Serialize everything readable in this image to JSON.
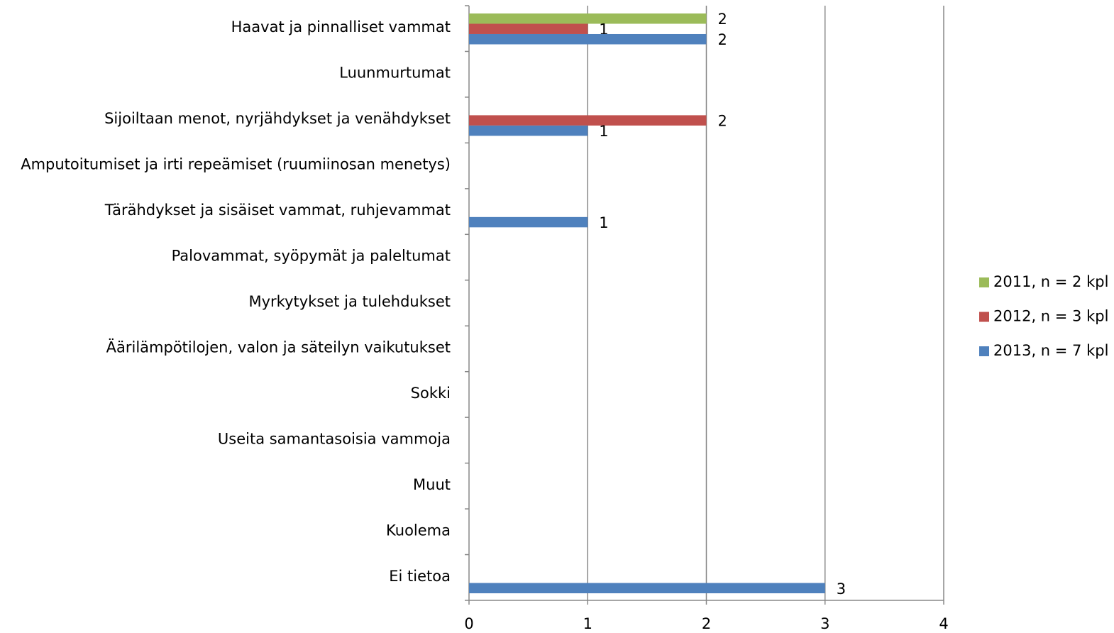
{
  "chart_data": {
    "type": "hbar",
    "categories": [
      "Haavat ja pinnalliset vammat",
      "Luunmurtumat",
      "Sijoiltaan menot, nyrjähdykset ja venähdykset",
      "Amputoitumiset ja irti repeämiset (ruumiinosan menetys)",
      "Tärähdykset ja sisäiset vammat, ruhjevammat",
      "Palovammat, syöpymät ja paleltumat",
      "Myrkytykset ja tulehdukset",
      "Äärilämpötilojen, valon ja säteilyn vaikutukset",
      "Sokki",
      "Useita samantasoisia vammoja",
      "Muut",
      "Kuolema",
      "Ei tietoa"
    ],
    "series": [
      {
        "name": "2011, n = 2 kpl",
        "color": "#9bbb59",
        "values": [
          2,
          null,
          null,
          null,
          null,
          null,
          null,
          null,
          null,
          null,
          null,
          null,
          null
        ]
      },
      {
        "name": "2012, n = 3 kpl",
        "color": "#c0504d",
        "values": [
          1,
          null,
          2,
          null,
          null,
          null,
          null,
          null,
          null,
          null,
          null,
          null,
          null
        ]
      },
      {
        "name": "2013, n = 7 kpl",
        "color": "#4f81bd",
        "values": [
          2,
          null,
          1,
          null,
          1,
          null,
          null,
          null,
          null,
          null,
          null,
          null,
          3
        ]
      }
    ],
    "xlim": [
      0,
      4
    ],
    "xticks": [
      0,
      1,
      2,
      3,
      4
    ],
    "grid": true,
    "legend": "right"
  }
}
